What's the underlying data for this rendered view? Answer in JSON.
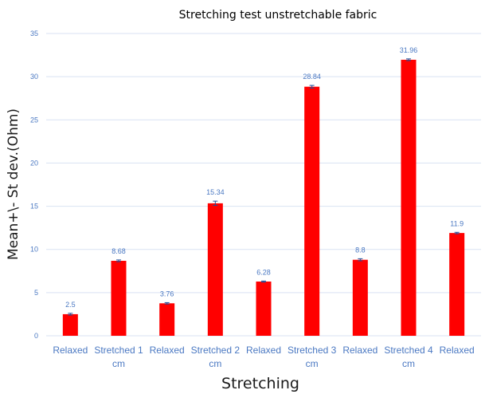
{
  "chart_data": {
    "type": "bar",
    "title": "Stretching test unstretchable fabric",
    "xlabel": "Stretching",
    "ylabel": "Mean+\\- St dev.(Ohm)",
    "categories": [
      [
        "Relaxed"
      ],
      [
        "Stretched 1",
        "cm"
      ],
      [
        "Relaxed"
      ],
      [
        "Stretched 2",
        "cm"
      ],
      [
        "Relaxed"
      ],
      [
        "Stretched 3",
        "cm"
      ],
      [
        "Relaxed"
      ],
      [
        "Stretched 4",
        "cm"
      ],
      [
        "Relaxed"
      ]
    ],
    "values": [
      2.5,
      8.68,
      3.76,
      15.34,
      6.28,
      28.84,
      8.8,
      31.96,
      11.9
    ],
    "data_labels": [
      "2.5",
      "8.68",
      "3.76",
      "15.34",
      "6.28",
      "28.84",
      "8.8",
      "31.96",
      "11.9"
    ],
    "errors": [
      0.1,
      0.1,
      0.08,
      0.25,
      0.06,
      0.15,
      0.12,
      0.1,
      0.08
    ],
    "ylim": [
      0,
      35
    ],
    "yticks": [
      0,
      5,
      10,
      15,
      20,
      25,
      30,
      35
    ],
    "grid": true,
    "legend": "none",
    "colors": {
      "bar": "#ff0000",
      "error_bar": "#1f4e9a",
      "grid": "#d9e2f3",
      "label": "#4a78c2"
    }
  }
}
